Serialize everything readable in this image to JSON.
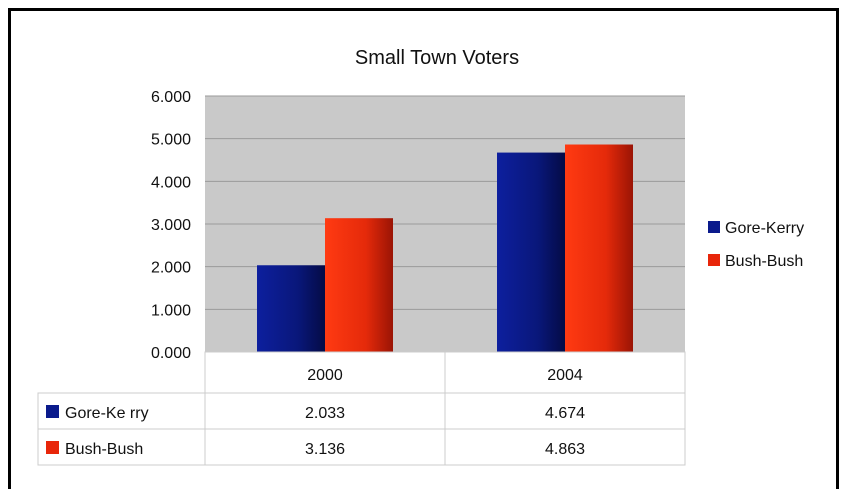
{
  "chart_data": {
    "type": "bar",
    "title": "Small Town Voters",
    "categories": [
      "2000",
      "2004"
    ],
    "series": [
      {
        "name": "Gore-Kerry",
        "values": [
          2.033,
          4.674
        ]
      },
      {
        "name": "Bush-Bush",
        "values": [
          3.136,
          4.863
        ]
      }
    ],
    "yticks": [
      "0.000",
      "1.000",
      "2.000",
      "3.000",
      "4.000",
      "5.000",
      "6.000"
    ],
    "ylim": [
      0,
      6
    ],
    "grid": true,
    "legend_position": "right",
    "data_table": {
      "labels": [
        "Gore-Ke rry",
        "Bush-Bush"
      ],
      "values": [
        [
          "2.033",
          "4.674"
        ],
        [
          "3.136",
          "4.863"
        ]
      ]
    },
    "colors": {
      "gore_kerry": "#0a1a8c",
      "bush_bush": "#e8260a",
      "plot_bg": "#c9c9c9"
    }
  }
}
